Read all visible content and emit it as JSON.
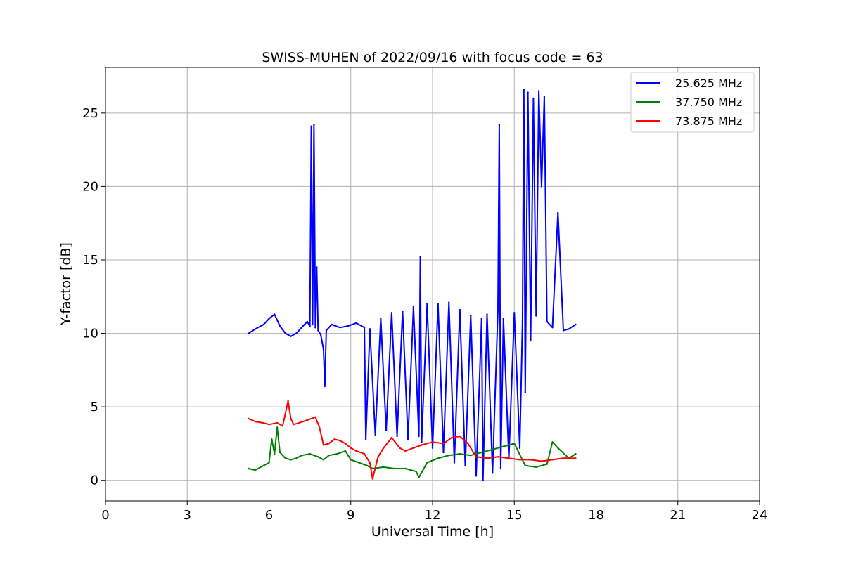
{
  "chart_data": {
    "type": "line",
    "title": "SWISS-MUHEN of 2022/09/16 with focus code = 63",
    "xlabel": "Universal Time [h]",
    "ylabel": "Y-factor [dB]",
    "xlim": [
      0,
      24
    ],
    "ylim": [
      -1.4,
      28.1
    ],
    "xticks": [
      0,
      3,
      6,
      9,
      12,
      15,
      18,
      21,
      24
    ],
    "yticks": [
      0,
      5,
      10,
      15,
      20,
      25
    ],
    "grid": true,
    "legend_position": "top-right",
    "series": [
      {
        "name": "25.625 MHz",
        "color": "#0000ff",
        "x": [
          5.25,
          5.5,
          5.8,
          6.0,
          6.2,
          6.4,
          6.6,
          6.8,
          7.0,
          7.2,
          7.4,
          7.5,
          7.55,
          7.6,
          7.65,
          7.7,
          7.75,
          7.8,
          7.9,
          8.0,
          8.05,
          8.1,
          8.3,
          8.6,
          8.9,
          9.2,
          9.5,
          9.55,
          9.7,
          9.9,
          10.1,
          10.3,
          10.5,
          10.7,
          10.9,
          11.1,
          11.3,
          11.5,
          11.55,
          11.6,
          11.8,
          12.0,
          12.2,
          12.4,
          12.6,
          12.8,
          13.0,
          13.2,
          13.4,
          13.6,
          13.8,
          13.85,
          14.0,
          14.2,
          14.4,
          14.45,
          14.5,
          14.6,
          14.8,
          15.0,
          15.2,
          15.3,
          15.35,
          15.4,
          15.5,
          15.6,
          15.7,
          15.8,
          15.9,
          16.0,
          16.1,
          16.2,
          16.4,
          16.6,
          16.8,
          17.0,
          17.25
        ],
        "values": [
          10.0,
          10.3,
          10.6,
          11.0,
          11.3,
          10.5,
          10.0,
          9.8,
          10.0,
          10.4,
          10.8,
          10.5,
          24.1,
          10.6,
          24.2,
          10.4,
          14.5,
          10.2,
          9.9,
          8.9,
          6.4,
          10.2,
          10.6,
          10.4,
          10.5,
          10.7,
          10.4,
          2.8,
          10.3,
          3.1,
          11.0,
          3.4,
          11.4,
          3.0,
          11.5,
          2.8,
          11.8,
          3.0,
          15.2,
          2.6,
          12.0,
          2.2,
          12.0,
          1.9,
          12.1,
          1.2,
          11.6,
          1.0,
          11.2,
          0.3,
          11.0,
          0.0,
          11.3,
          0.5,
          11.6,
          24.2,
          0.8,
          11.0,
          1.5,
          11.4,
          2.2,
          10.8,
          26.6,
          6.0,
          26.4,
          9.5,
          26.0,
          11.2,
          26.5,
          20.0,
          26.1,
          10.8,
          10.4,
          18.2,
          10.2,
          10.3,
          10.6
        ]
      },
      {
        "name": "37.750 MHz",
        "color": "#008000",
        "x": [
          5.25,
          5.5,
          5.8,
          6.0,
          6.1,
          6.2,
          6.3,
          6.4,
          6.6,
          6.8,
          7.0,
          7.2,
          7.5,
          7.8,
          8.0,
          8.2,
          8.5,
          8.8,
          9.0,
          9.3,
          9.6,
          9.8,
          10.2,
          10.6,
          11.0,
          11.4,
          11.5,
          11.8,
          12.2,
          12.6,
          13.0,
          13.4,
          13.8,
          14.2,
          14.6,
          15.0,
          15.4,
          15.8,
          16.2,
          16.4,
          16.6,
          17.0,
          17.25
        ],
        "values": [
          0.8,
          0.7,
          1.0,
          1.2,
          2.8,
          1.8,
          3.6,
          1.9,
          1.5,
          1.4,
          1.5,
          1.7,
          1.8,
          1.6,
          1.4,
          1.7,
          1.8,
          2.0,
          1.4,
          1.2,
          1.0,
          0.8,
          0.9,
          0.8,
          0.8,
          0.6,
          0.2,
          1.2,
          1.5,
          1.7,
          1.8,
          1.7,
          1.9,
          2.1,
          2.3,
          2.5,
          1.0,
          0.9,
          1.1,
          2.6,
          2.2,
          1.5,
          1.8
        ]
      },
      {
        "name": "73.875 MHz",
        "color": "#ff0000",
        "x": [
          5.25,
          5.5,
          5.8,
          6.0,
          6.3,
          6.5,
          6.7,
          6.8,
          6.9,
          7.1,
          7.4,
          7.7,
          7.85,
          8.0,
          8.2,
          8.4,
          8.6,
          8.8,
          9.0,
          9.2,
          9.5,
          9.7,
          9.8,
          10.0,
          10.2,
          10.5,
          10.8,
          11.0,
          11.3,
          11.6,
          12.0,
          12.4,
          12.7,
          13.0,
          13.3,
          13.6,
          14.0,
          14.4,
          14.8,
          15.2,
          15.6,
          16.0,
          16.4,
          16.8,
          17.25
        ],
        "values": [
          4.2,
          4.0,
          3.9,
          3.8,
          3.9,
          3.7,
          5.4,
          4.2,
          3.8,
          3.9,
          4.1,
          4.3,
          3.6,
          2.4,
          2.5,
          2.8,
          2.7,
          2.5,
          2.2,
          2.0,
          1.8,
          1.2,
          0.1,
          1.6,
          2.2,
          2.9,
          2.2,
          2.0,
          2.2,
          2.4,
          2.6,
          2.5,
          2.9,
          3.0,
          2.5,
          1.6,
          1.5,
          1.6,
          1.5,
          1.4,
          1.4,
          1.3,
          1.4,
          1.5,
          1.5
        ]
      }
    ]
  }
}
